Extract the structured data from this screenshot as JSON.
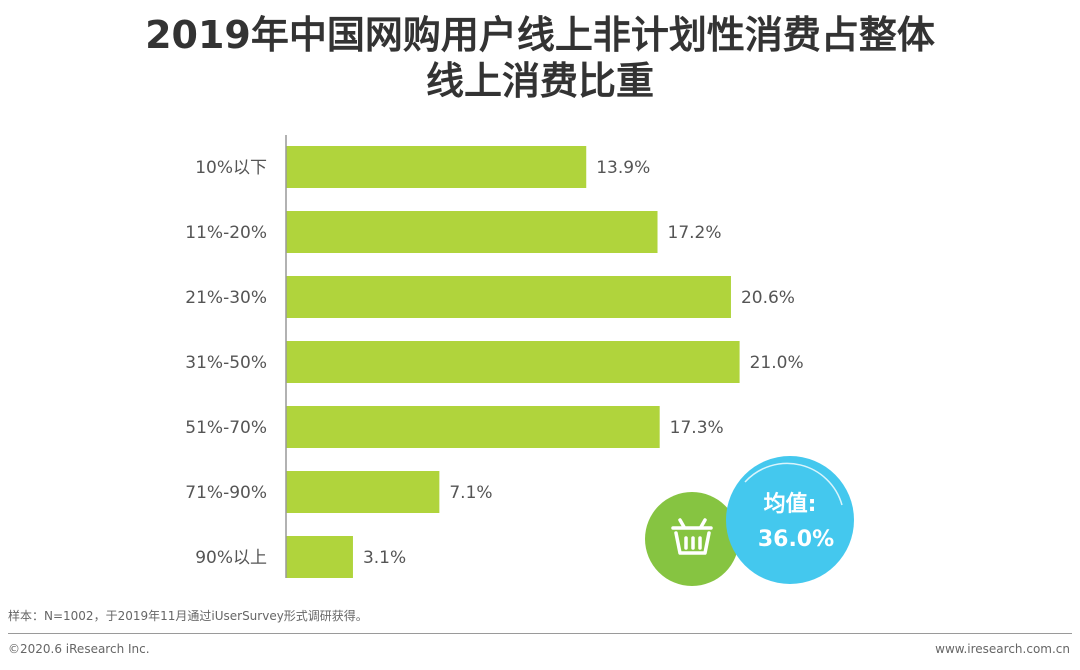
{
  "title_line1": "2019年中国网购用户线上非计划性消费占整体",
  "title_line2": "线上消费比重",
  "chart_data": {
    "type": "bar",
    "orientation": "horizontal",
    "title": "2019年中国网购用户线上非计划性消费占整体线上消费比重",
    "categories": [
      "10%以下",
      "11%-20%",
      "21%-30%",
      "31%-50%",
      "51%-70%",
      "71%-90%",
      "90%以上"
    ],
    "values": [
      13.9,
      17.2,
      20.6,
      21.0,
      17.3,
      7.1,
      3.1
    ],
    "value_labels": [
      "13.9%",
      "17.2%",
      "20.6%",
      "21.0%",
      "17.3%",
      "7.1%",
      "3.1%"
    ],
    "unit": "%",
    "xlim": [
      0,
      25
    ],
    "bar_color": "#b0d43c",
    "grid": false,
    "legend": "none"
  },
  "badge": {
    "label": "均值:",
    "value": "36.0%",
    "icon": "shopping-basket-icon",
    "green_color": "#86c441",
    "blue_color": "#44c8ee"
  },
  "note": "样本：N=1002，于2019年11月通过iUserSurvey形式调研获得。",
  "copyright": "©2020.6 iResearch Inc.",
  "website": "www.iresearch.com.cn"
}
